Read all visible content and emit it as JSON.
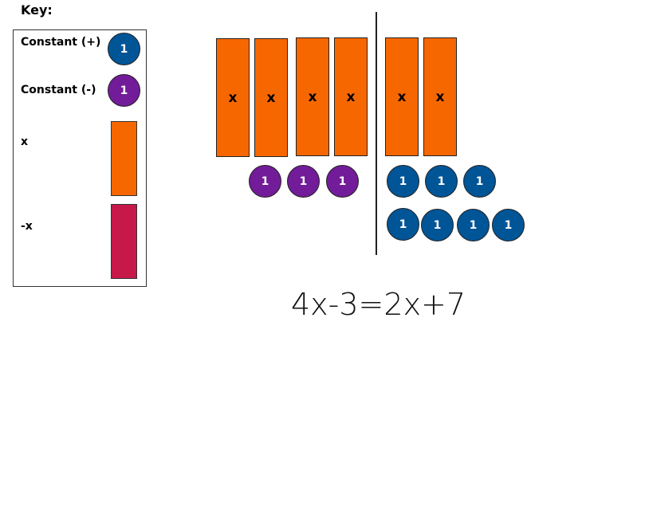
{
  "key": {
    "title": "Key:",
    "items": [
      {
        "label": "Constant (+)",
        "symbol": "1",
        "color": "#005597"
      },
      {
        "label": "Constant (-)",
        "symbol": "1",
        "color": "#721c99"
      },
      {
        "label": "x",
        "color": "#f76700"
      },
      {
        "label": "-x",
        "color": "#c7184a"
      }
    ]
  },
  "left_side": {
    "x_tiles": [
      "x",
      "x",
      "x",
      "x"
    ],
    "negative_constants": [
      "1",
      "1",
      "1"
    ]
  },
  "right_side": {
    "x_tiles": [
      "x",
      "x"
    ],
    "positive_constants": [
      "1",
      "1",
      "1",
      "1",
      "1",
      "1",
      "1"
    ]
  },
  "equation": "4x-3=2x+7"
}
